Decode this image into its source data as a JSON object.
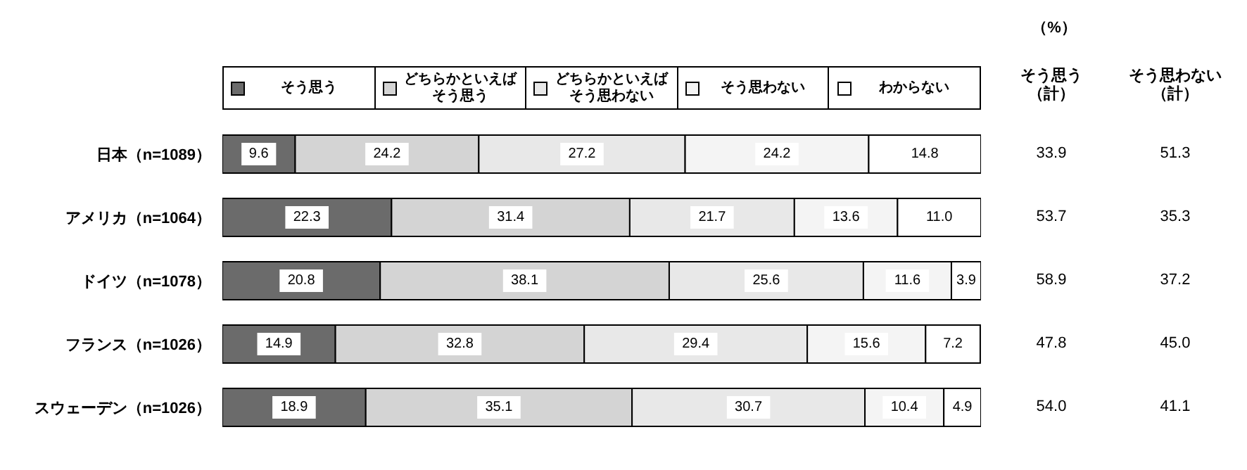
{
  "chart_data": {
    "type": "bar",
    "orientation": "horizontal",
    "stacked": true,
    "categories": [
      "日本（n=1089）",
      "アメリカ（n=1064）",
      "ドイツ（n=1078）",
      "フランス（n=1026）",
      "スウェーデン（n=1026）"
    ],
    "series": [
      {
        "name": "そう思う",
        "color": "#6b6b6b",
        "values": [
          9.6,
          22.3,
          20.8,
          14.9,
          18.9
        ],
        "value_labels": [
          "9.6",
          "22.3",
          "20.8",
          "14.9",
          "18.9"
        ]
      },
      {
        "name": "どちらかといえばそう思う",
        "color": "#d4d4d4",
        "values": [
          24.2,
          31.4,
          38.1,
          32.8,
          35.1
        ],
        "value_labels": [
          "24.2",
          "31.4",
          "38.1",
          "32.8",
          "35.1"
        ]
      },
      {
        "name": "どちらかといえばそう思わない",
        "color": "#e8e8e8",
        "values": [
          27.2,
          21.7,
          25.6,
          29.4,
          30.7
        ],
        "value_labels": [
          "27.2",
          "21.7",
          "25.6",
          "29.4",
          "30.7"
        ]
      },
      {
        "name": "そう思わない",
        "color": "#f4f4f4",
        "values": [
          24.2,
          13.6,
          11.6,
          15.6,
          10.4
        ],
        "value_labels": [
          "24.2",
          "13.6",
          "11.6",
          "15.6",
          "10.4"
        ]
      },
      {
        "name": "わからない",
        "color": "#ffffff",
        "values": [
          14.8,
          11.0,
          3.9,
          7.2,
          4.9
        ],
        "value_labels": [
          "14.8",
          "11.0",
          "3.9",
          "7.2",
          "4.9"
        ]
      }
    ],
    "xlim": [
      0,
      100
    ],
    "tick_labels": "y",
    "grid": false,
    "legend": "top",
    "annotations": [
      "（%）",
      "そう思う（計）",
      "そう思わない（計）",
      "33.9",
      "51.3",
      "53.7",
      "35.3",
      "58.9",
      "37.2",
      "47.8",
      "45.0",
      "54.0",
      "41.1"
    ]
  }
}
